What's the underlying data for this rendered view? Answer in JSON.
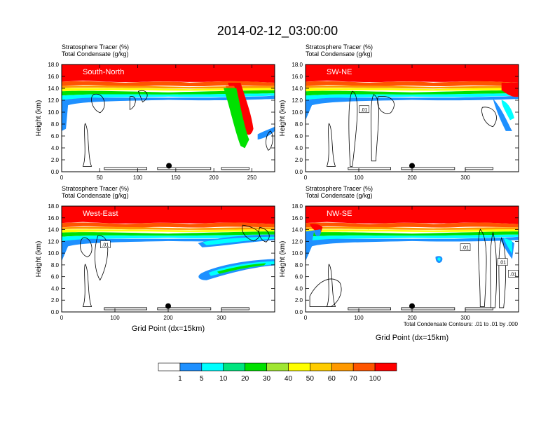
{
  "page": {
    "title": "2014-02-12_03:00:00",
    "footnote": "Total Condensate Contours: .01 to .01 by .000"
  },
  "colorbar": {
    "colors": [
      "#ffffff",
      "#1e90ff",
      "#00ffff",
      "#00e57f",
      "#00e100",
      "#a0e632",
      "#ffff00",
      "#ffcc00",
      "#ff9900",
      "#ff5500",
      "#ff0000"
    ],
    "labels": [
      "1",
      "5",
      "10",
      "20",
      "30",
      "40",
      "50",
      "60",
      "70",
      "100"
    ]
  },
  "chart_data": [
    {
      "type": "heatmap",
      "label": "South-North",
      "subtitle_line1": "Stratosphere Tracer   (%)",
      "subtitle_line2": "Total Condensate   (g/kg)",
      "ylabel": "Height (km)",
      "xlabel": "",
      "xlim": [
        0,
        280
      ],
      "ylim": [
        0,
        18
      ],
      "xticks": [
        "0",
        "50",
        "100",
        "150",
        "200",
        "250"
      ],
      "xtick_values": [
        0,
        50,
        100,
        150,
        200,
        250
      ],
      "yticks": [
        "0.0",
        "2.0",
        "4.0",
        "6.0",
        "8.0",
        "10.0",
        "12.0",
        "14.0",
        "16.0",
        "18.0"
      ],
      "marker": {
        "x": 141,
        "y": 1.0
      },
      "contour_labels": []
    },
    {
      "type": "heatmap",
      "label": "SW-NE",
      "subtitle_line1": "Stratosphere Tracer   (%)",
      "subtitle_line2": "Total Condensate   (g/kg)",
      "ylabel": "Height (km)",
      "xlabel": "",
      "xlim": [
        0,
        400
      ],
      "ylim": [
        0,
        18
      ],
      "xticks": [
        "0",
        "100",
        "200",
        "300"
      ],
      "xtick_values": [
        0,
        100,
        200,
        300
      ],
      "yticks": [
        "0.0",
        "2.0",
        "4.0",
        "6.0",
        "8.0",
        "10.0",
        "12.0",
        "14.0",
        "16.0",
        "18.0"
      ],
      "marker": {
        "x": 200,
        "y": 1.0
      },
      "contour_labels": [
        {
          "text": ".01",
          "x": 110,
          "y": 10.5
        }
      ]
    },
    {
      "type": "heatmap",
      "label": "West-East",
      "subtitle_line1": "Stratosphere Tracer   (%)",
      "subtitle_line2": "Total Condensate   (g/kg)",
      "ylabel": "Height (km)",
      "xlabel": "Grid Point (dx=15km)",
      "xlim": [
        0,
        400
      ],
      "ylim": [
        0,
        18
      ],
      "xticks": [
        "0",
        "100",
        "200",
        "300"
      ],
      "xtick_values": [
        0,
        100,
        200,
        300
      ],
      "yticks": [
        "0.0",
        "2.0",
        "4.0",
        "6.0",
        "8.0",
        "10.0",
        "12.0",
        "14.0",
        "16.0",
        "18.0"
      ],
      "marker": {
        "x": 200,
        "y": 1.0
      },
      "contour_labels": [
        {
          "text": ".01",
          "x": 82,
          "y": 11.5
        }
      ]
    },
    {
      "type": "heatmap",
      "label": "NW-SE",
      "subtitle_line1": "Stratosphere Tracer   (%)",
      "subtitle_line2": "Total Condensate   (g/kg)",
      "ylabel": "Height (km)",
      "xlabel": "Grid Point (dx=15km)",
      "xlim": [
        0,
        400
      ],
      "ylim": [
        0,
        18
      ],
      "xticks": [
        "0",
        "100",
        "200",
        "300"
      ],
      "xtick_values": [
        0,
        100,
        200,
        300
      ],
      "yticks": [
        "0.0",
        "2.0",
        "4.0",
        "6.0",
        "8.0",
        "10.0",
        "12.0",
        "14.0",
        "16.0",
        "18.0"
      ],
      "marker": {
        "x": 200,
        "y": 1.0
      },
      "contour_labels": [
        {
          "text": ".01",
          "x": 300,
          "y": 11.0
        },
        {
          "text": ".01",
          "x": 370,
          "y": 8.5
        },
        {
          "text": ".01",
          "x": 390,
          "y": 6.5
        }
      ]
    }
  ]
}
